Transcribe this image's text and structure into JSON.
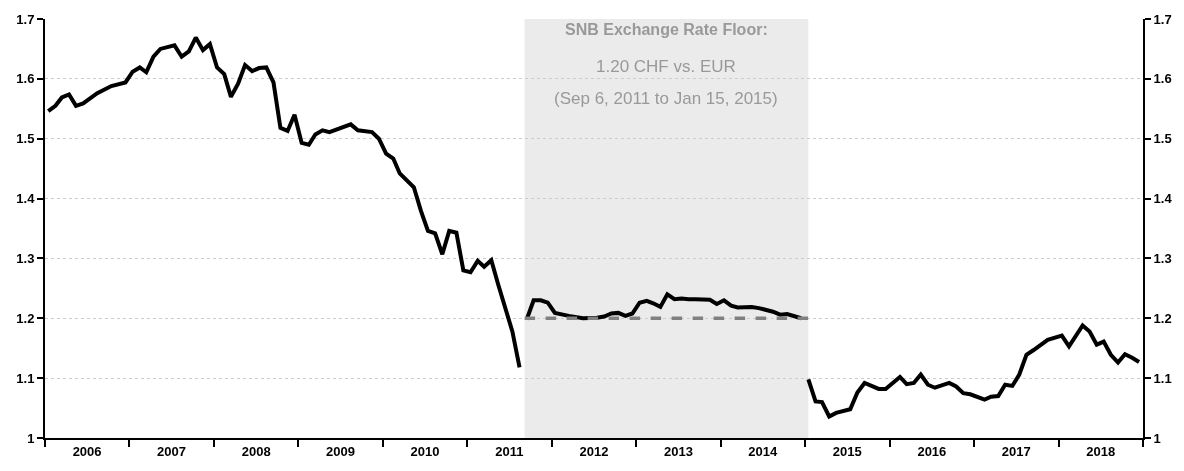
{
  "chart_data": {
    "type": "line",
    "x": [
      "2006-01-15",
      "2006-02-15",
      "2006-03-15",
      "2006-04-15",
      "2006-05-15",
      "2006-06-15",
      "2006-08-15",
      "2006-10-15",
      "2006-12-15",
      "2007-01-15",
      "2007-02-15",
      "2007-03-15",
      "2007-04-15",
      "2007-05-15",
      "2007-07-15",
      "2007-08-15",
      "2007-09-15",
      "2007-10-15",
      "2007-11-15",
      "2007-12-15",
      "2008-01-15",
      "2008-02-15",
      "2008-03-15",
      "2008-04-15",
      "2008-05-15",
      "2008-06-15",
      "2008-07-15",
      "2008-08-15",
      "2008-09-15",
      "2008-10-15",
      "2008-11-15",
      "2008-12-15",
      "2009-01-15",
      "2009-02-15",
      "2009-03-15",
      "2009-04-15",
      "2009-05-15",
      "2009-08-15",
      "2009-09-15",
      "2009-11-15",
      "2009-12-15",
      "2010-01-15",
      "2010-02-15",
      "2010-03-15",
      "2010-05-15",
      "2010-06-15",
      "2010-07-15",
      "2010-08-15",
      "2010-09-15",
      "2010-10-15",
      "2010-11-15",
      "2010-12-15",
      "2011-01-15",
      "2011-02-15",
      "2011-03-15",
      "2011-04-15",
      "2011-05-15",
      "2011-07-15",
      "2011-08-15",
      "2011-09-01",
      "2011-09-15",
      "2011-10-15",
      "2011-11-15",
      "2011-12-15",
      "2012-01-15",
      "2012-03-15",
      "2012-05-15",
      "2012-07-15",
      "2012-08-15",
      "2012-09-15",
      "2012-10-15",
      "2012-11-15",
      "2012-12-15",
      "2013-01-15",
      "2013-02-15",
      "2013-03-15",
      "2013-04-15",
      "2013-05-15",
      "2013-06-15",
      "2013-07-15",
      "2013-08-15",
      "2013-09-15",
      "2013-11-15",
      "2013-12-15",
      "2014-01-15",
      "2014-02-15",
      "2014-03-15",
      "2014-05-15",
      "2014-06-15",
      "2014-08-15",
      "2014-09-15",
      "2014-10-15",
      "2014-12-15",
      "2015-01-01",
      "2015-01-15",
      "2015-02-15",
      "2015-03-15",
      "2015-04-15",
      "2015-05-15",
      "2015-07-15",
      "2015-08-15",
      "2015-09-15",
      "2015-11-15",
      "2015-12-15",
      "2016-02-15",
      "2016-03-15",
      "2016-04-15",
      "2016-05-15",
      "2016-06-15",
      "2016-07-15",
      "2016-09-15",
      "2016-10-15",
      "2016-11-15",
      "2016-12-15",
      "2017-02-15",
      "2017-03-15",
      "2017-04-15",
      "2017-05-15",
      "2017-06-15",
      "2017-07-15",
      "2017-08-15",
      "2017-09-15",
      "2017-11-15",
      "2018-01-15",
      "2018-02-15",
      "2018-04-15",
      "2018-05-15",
      "2018-06-15",
      "2018-07-15",
      "2018-08-15",
      "2018-09-15",
      "2018-10-15",
      "2018-11-15",
      "2018-12-15"
    ],
    "series": [
      {
        "color": "#000000",
        "values": [
          1.546,
          1.555,
          1.569,
          1.574,
          1.555,
          1.559,
          1.576,
          1.588,
          1.594,
          1.612,
          1.619,
          1.611,
          1.637,
          1.65,
          1.656,
          1.637,
          1.646,
          1.669,
          1.648,
          1.658,
          1.619,
          1.608,
          1.57,
          1.592,
          1.623,
          1.613,
          1.618,
          1.619,
          1.594,
          1.518,
          1.513,
          1.54,
          1.493,
          1.49,
          1.507,
          1.514,
          1.511,
          1.524,
          1.514,
          1.511,
          1.5,
          1.475,
          1.467,
          1.442,
          1.419,
          1.379,
          1.346,
          1.342,
          1.307,
          1.346,
          1.343,
          1.28,
          1.277,
          1.296,
          1.286,
          1.297,
          1.256,
          1.178,
          1.118,
          null,
          1.198,
          1.23,
          1.23,
          1.226,
          1.209,
          1.204,
          1.2,
          1.201,
          1.203,
          1.208,
          1.209,
          1.204,
          1.208,
          1.226,
          1.229,
          1.225,
          1.219,
          1.24,
          1.232,
          1.233,
          1.232,
          1.232,
          1.231,
          1.224,
          1.23,
          1.221,
          1.218,
          1.219,
          1.217,
          1.211,
          1.206,
          1.207,
          1.2,
          null,
          1.098,
          1.061,
          1.06,
          1.036,
          1.042,
          1.048,
          1.076,
          1.092,
          1.082,
          1.082,
          1.102,
          1.09,
          1.092,
          1.106,
          1.089,
          1.084,
          1.092,
          1.086,
          1.075,
          1.073,
          1.064,
          1.069,
          1.07,
          1.089,
          1.087,
          1.106,
          1.139,
          1.147,
          1.164,
          1.171,
          1.153,
          1.188,
          1.178,
          1.156,
          1.161,
          1.139,
          1.126,
          1.14,
          1.134,
          1.127
        ]
      },
      {
        "type": "line",
        "color": "#808080",
        "line_style": "dashed",
        "x": [
          "2011-09-06",
          "2015-01-15"
        ],
        "values": [
          1.2,
          1.2
        ]
      }
    ],
    "bands": [
      {
        "axis": "x",
        "from": "2011-09-06",
        "to": "2015-01-15",
        "color": "#ebebeb"
      }
    ],
    "annotations": [
      "SNB Exchange Rate Floor:",
      "1.20 CHF vs. EUR",
      "(Sep 6, 2011 to Jan 15, 2015)"
    ],
    "xlim": [
      "2006-01-01",
      "2019-01-01"
    ],
    "xticks": [
      {
        "value": "2006-01-01",
        "label": null
      },
      {
        "value": "2006-07-02",
        "label": "2006"
      },
      {
        "value": "2007-01-01",
        "label": null
      },
      {
        "value": "2007-07-02",
        "label": "2007"
      },
      {
        "value": "2008-01-01",
        "label": null
      },
      {
        "value": "2008-07-02",
        "label": "2008"
      },
      {
        "value": "2009-01-01",
        "label": null
      },
      {
        "value": "2009-07-02",
        "label": "2009"
      },
      {
        "value": "2010-01-01",
        "label": null
      },
      {
        "value": "2010-07-02",
        "label": "2010"
      },
      {
        "value": "2011-01-01",
        "label": null
      },
      {
        "value": "2011-07-02",
        "label": "2011"
      },
      {
        "value": "2012-01-01",
        "label": null
      },
      {
        "value": "2012-07-02",
        "label": "2012"
      },
      {
        "value": "2013-01-01",
        "label": null
      },
      {
        "value": "2013-07-02",
        "label": "2013"
      },
      {
        "value": "2014-01-01",
        "label": null
      },
      {
        "value": "2014-07-02",
        "label": "2014"
      },
      {
        "value": "2015-01-01",
        "label": null
      },
      {
        "value": "2015-07-02",
        "label": "2015"
      },
      {
        "value": "2016-01-01",
        "label": null
      },
      {
        "value": "2016-07-02",
        "label": "2016"
      },
      {
        "value": "2017-01-01",
        "label": null
      },
      {
        "value": "2017-07-02",
        "label": "2017"
      },
      {
        "value": "2018-01-01",
        "label": null
      },
      {
        "value": "2018-07-02",
        "label": "2018"
      },
      {
        "value": "2019-01-01",
        "label": null
      }
    ],
    "ylim": [
      1,
      1.7
    ],
    "yticks": [
      1,
      1.1,
      1.2,
      1.3,
      1.4,
      1.5,
      1.6,
      1.7
    ],
    "y2lim": [
      1,
      1.7
    ],
    "y2ticks": [
      1,
      1.1,
      1.2,
      1.3,
      1.4,
      1.5,
      1.6,
      1.7
    ],
    "grid": "y",
    "marker": "none",
    "line_style": "solid"
  }
}
